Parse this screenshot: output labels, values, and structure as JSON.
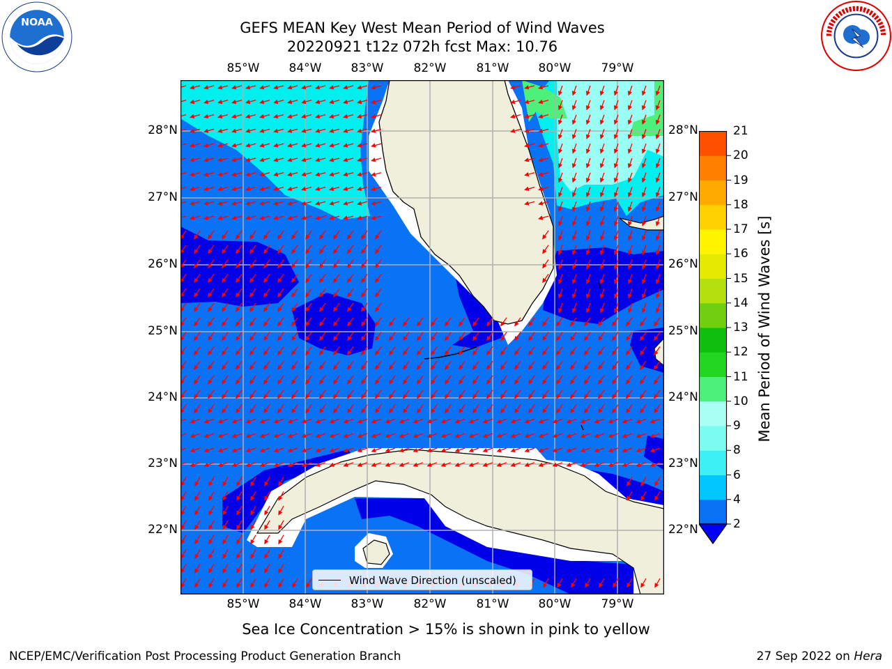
{
  "title_line1": "GEFS MEAN Key West Mean Period of Wind Waves",
  "title_line2": "20220921 t12z 072h fcst   Max: 10.76",
  "lon_ticks": [
    "85°W",
    "84°W",
    "83°W",
    "82°W",
    "81°W",
    "80°W",
    "79°W"
  ],
  "lat_ticks": [
    "28°N",
    "27°N",
    "26°N",
    "25°N",
    "24°N",
    "23°N",
    "22°N"
  ],
  "legend_label": "Wind Wave Direction (unscaled)",
  "colorbar": {
    "label": "Mean Period of Wind Waves [s]",
    "ticks": [
      "2",
      "4",
      "6",
      "8",
      "9",
      "10",
      "11",
      "12",
      "13",
      "14",
      "15",
      "16",
      "17",
      "18",
      "19",
      "20",
      "21"
    ],
    "colors": [
      "#0a73f5",
      "#00c8ff",
      "#3cf0f5",
      "#7cfbf0",
      "#aafff5",
      "#4ef07c",
      "#22d622",
      "#10c010",
      "#70d010",
      "#b4e010",
      "#e4ea00",
      "#fff500",
      "#ffd200",
      "#ffaa00",
      "#ff8000",
      "#ff5000",
      "#ff2000",
      "#ff0000"
    ],
    "under_color": "#0000ff"
  },
  "caption": "Sea Ice Concentration > 15% is shown in pink to yellow",
  "footer_left": "NCEP/EMC/Verification Post Processing Product Generation Branch",
  "footer_right_date": "27 Sep 2022 on ",
  "footer_right_host": "Hera",
  "colors": {
    "ocean_dark": "#0000e8",
    "ocean_mid": "#0a73f5",
    "ocean_cyan": "#00f0f0",
    "ocean_light": "#99fff5",
    "land": "#efefdc",
    "arrow": "#ff0000",
    "grid": "#b0b0b0"
  }
}
